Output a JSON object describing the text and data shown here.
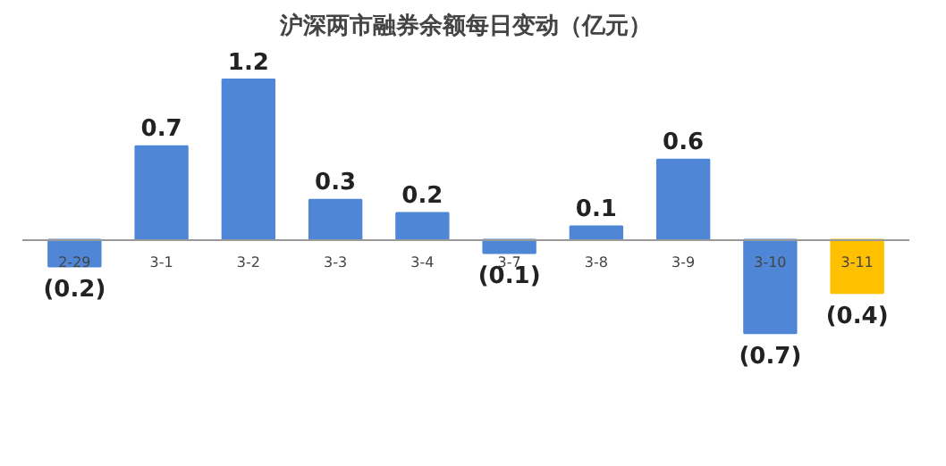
{
  "chart_data": {
    "type": "bar",
    "title": "沪深两市融券余额每日变动（亿元）",
    "categories": [
      "2-29",
      "3-1",
      "3-2",
      "3-3",
      "3-4",
      "3-7",
      "3-8",
      "3-9",
      "3-10",
      "3-11"
    ],
    "values": [
      -0.2,
      0.7,
      1.2,
      0.3,
      0.2,
      -0.1,
      0.1,
      0.6,
      -0.7,
      -0.4
    ],
    "colors": [
      "#4f86d6",
      "#4f86d6",
      "#4f86d6",
      "#4f86d6",
      "#4f86d6",
      "#4f86d6",
      "#4f86d6",
      "#4f86d6",
      "#4f86d6",
      "#ffc000"
    ],
    "value_labels": [
      "(0.2)",
      "0.7",
      "1.2",
      "0.3",
      "0.2",
      "(0.1)",
      "0.1",
      "0.6",
      "(0.7)",
      "(0.4)"
    ],
    "grid": false
  }
}
